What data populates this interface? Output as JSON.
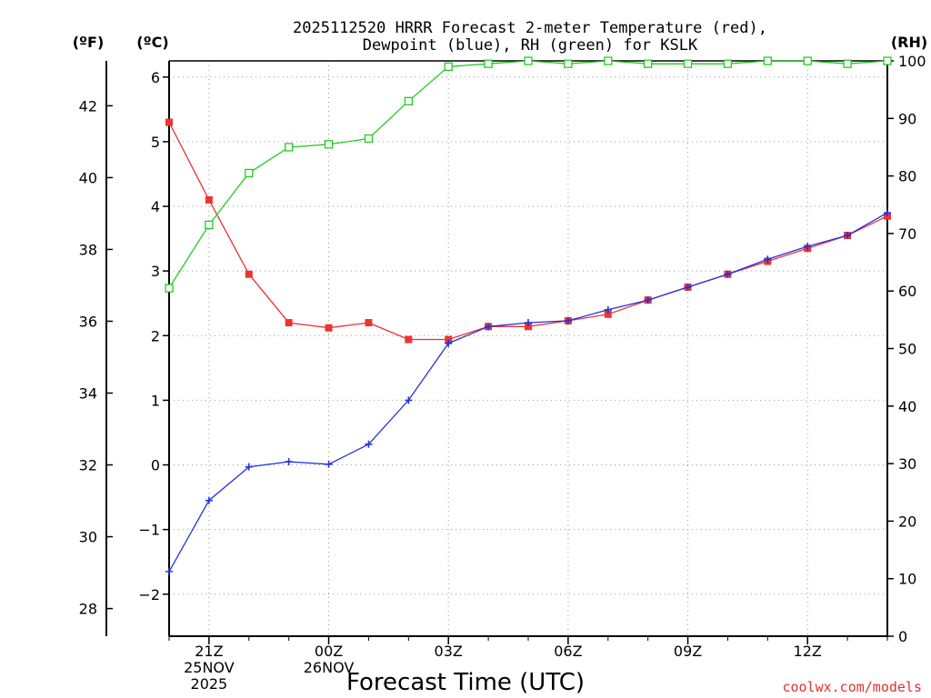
{
  "title_lines": [
    "2025112520 HRRR Forecast 2-meter Temperature (red),",
    "Dewpoint (blue), RH (green) for KSLK"
  ],
  "unit_labels": {
    "fahrenheit": "(ºF)",
    "celsius": "(ºC)",
    "rh": "(RH)"
  },
  "credit": "coolwx.com/models",
  "colors": {
    "temperature": "#ee3333",
    "dewpoint": "#2233dd",
    "rh": "#22cc22",
    "credit": "#dd3333"
  },
  "chart_data": {
    "type": "line",
    "title": "2025112520 HRRR Forecast 2-meter Temperature (red), Dewpoint (blue), RH (green) for KSLK",
    "xlabel": "Forecast Time (UTC)",
    "x_hours": [
      "20Z",
      "21Z",
      "22Z",
      "23Z",
      "00Z",
      "01Z",
      "02Z",
      "03Z",
      "04Z",
      "05Z",
      "06Z",
      "07Z",
      "08Z",
      "09Z",
      "10Z",
      "11Z",
      "12Z",
      "13Z",
      "14Z"
    ],
    "xticks": [
      {
        "hour": "21Z",
        "lines": [
          "21Z",
          "25NOV",
          "2025"
        ]
      },
      {
        "hour": "00Z",
        "lines": [
          "00Z",
          "26NOV"
        ]
      },
      {
        "hour": "03Z",
        "lines": [
          "03Z"
        ]
      },
      {
        "hour": "06Z",
        "lines": [
          "06Z"
        ]
      },
      {
        "hour": "09Z",
        "lines": [
          "09Z"
        ]
      },
      {
        "hour": "12Z",
        "lines": [
          "12Z"
        ]
      }
    ],
    "ylim_celsius": [
      -2.65,
      6.25
    ],
    "ylim_rh": [
      0,
      100
    ],
    "yticks_celsius": [
      -2,
      -1,
      0,
      1,
      2,
      3,
      4,
      5,
      6
    ],
    "yticks_fahrenheit": [
      28,
      30,
      32,
      34,
      36,
      38,
      40,
      42
    ],
    "yticks_rh": [
      0,
      10,
      20,
      30,
      40,
      50,
      60,
      70,
      80,
      90,
      100
    ],
    "grid": true,
    "series": [
      {
        "name": "Temperature",
        "axis": "celsius",
        "marker": "filled-square",
        "values": [
          5.3,
          4.1,
          2.95,
          2.2,
          2.12,
          2.2,
          1.94,
          1.94,
          2.14,
          2.14,
          2.23,
          2.33,
          2.55,
          2.75,
          2.95,
          3.15,
          3.35,
          3.55,
          3.85
        ]
      },
      {
        "name": "Dewpoint",
        "axis": "celsius",
        "marker": "plus",
        "values": [
          -1.65,
          -0.55,
          -0.03,
          0.05,
          0.01,
          0.32,
          1.0,
          1.88,
          2.14,
          2.2,
          2.23,
          2.4,
          2.55,
          2.75,
          2.95,
          3.18,
          3.38,
          3.55,
          3.9
        ]
      },
      {
        "name": "RH",
        "axis": "rh",
        "marker": "open-square",
        "values": [
          60.5,
          71.5,
          80.5,
          85,
          85.5,
          86.5,
          93,
          99,
          99.5,
          100,
          99.5,
          100,
          99.5,
          99.5,
          99.5,
          100,
          100,
          99.5,
          100
        ]
      }
    ]
  }
}
